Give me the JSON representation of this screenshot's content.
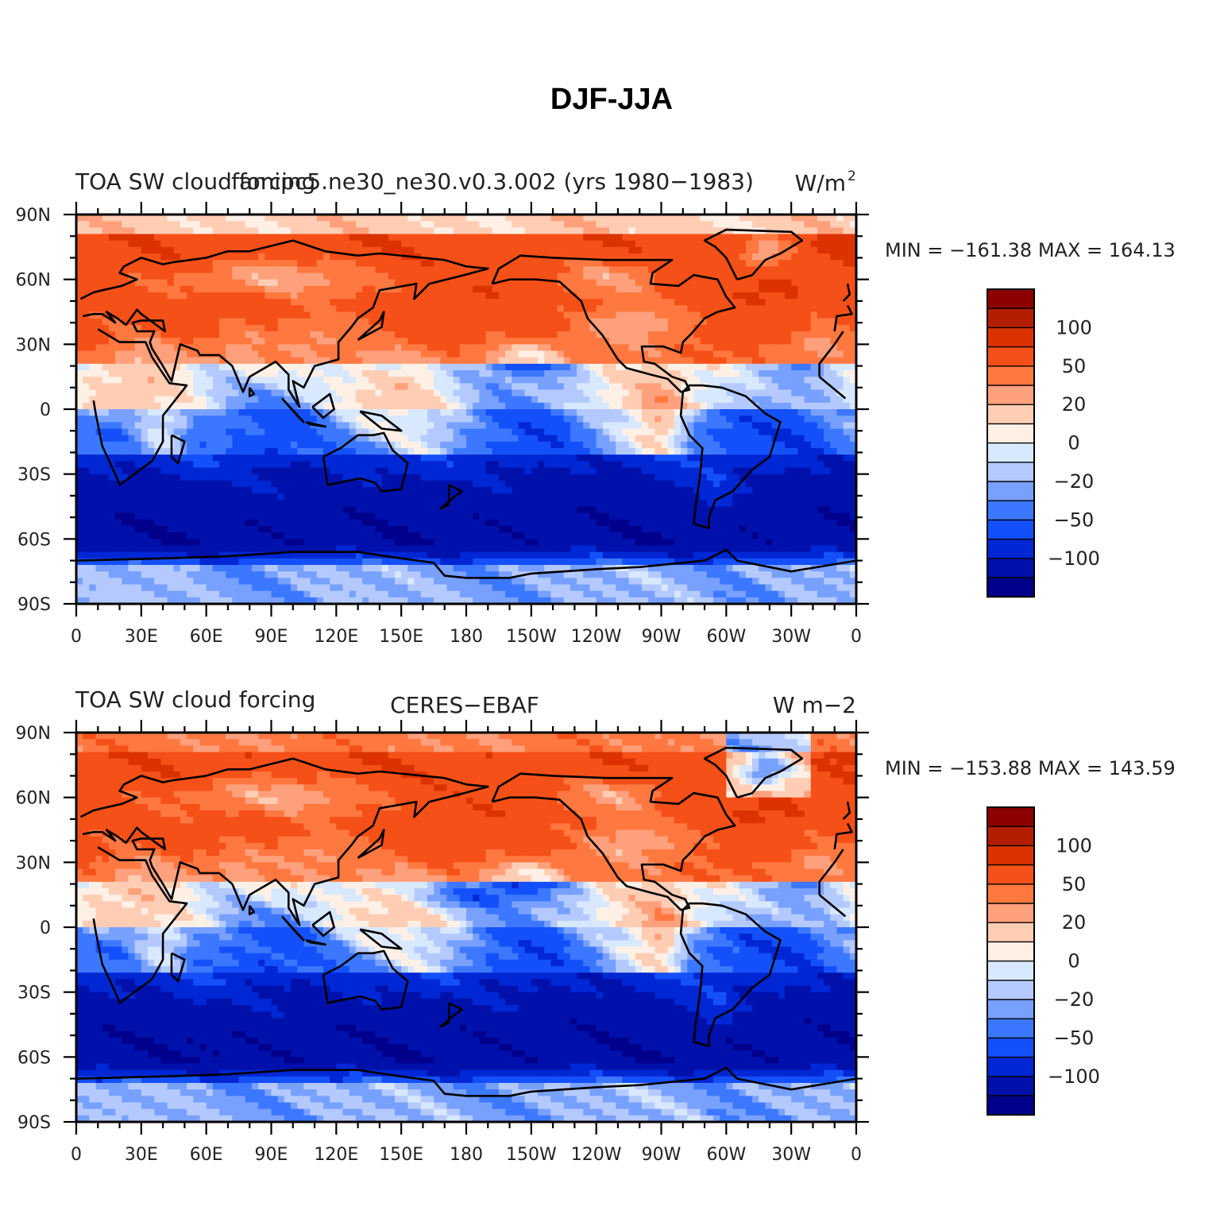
{
  "figure_title": "DJF-JJA",
  "colorbar": {
    "colors": [
      "#00008c",
      "#0011ab",
      "#0027d4",
      "#1450fa",
      "#3c78ff",
      "#78a0ff",
      "#b4caff",
      "#d8e8ff",
      "#fff0e6",
      "#ffcdb4",
      "#ffa07c",
      "#ff7840",
      "#f55018",
      "#dc3200",
      "#b41e00",
      "#8c0000"
    ],
    "labels": [
      "100",
      "50",
      "20",
      "0",
      "−20",
      "−50",
      "−100"
    ]
  },
  "axes": {
    "lat_ticks": [
      "90N",
      "60N",
      "30N",
      "0",
      "30S",
      "60S",
      "90S"
    ],
    "lon_ticks": [
      "0",
      "30E",
      "60E",
      "90E",
      "120E",
      "150E",
      "180",
      "150W",
      "120W",
      "90W",
      "60W",
      "30W",
      "0"
    ]
  },
  "panels": [
    {
      "left_title": "TOA SW cloud forcing",
      "center_title": "famipc5.ne30_ne30.v0.3.002 (yrs 1980−1983)",
      "units": "W/m",
      "units_sup": "2",
      "stats": "MIN = −161.38 MAX = 164.13",
      "field": "model"
    },
    {
      "left_title": "TOA SW cloud forcing",
      "center_title": "CERES−EBAF",
      "units": "W m−2",
      "units_sup": "",
      "stats": "MIN = −153.88 MAX = 143.59",
      "field": "obs"
    }
  ]
}
